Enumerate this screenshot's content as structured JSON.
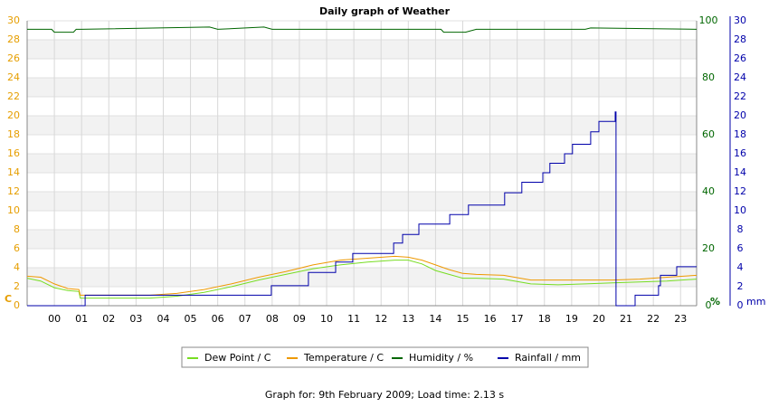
{
  "chart_data": {
    "type": "line",
    "title": "Daily graph of Weather",
    "footer": "Graph for: 9th February 2009; Load time: 2.13 s",
    "ylabel": "C",
    "y2label": "%",
    "y3label": "mm",
    "xlim": [
      -0.5,
      24.09
    ],
    "xticks": [
      {
        "value": 0.5,
        "label": "00"
      },
      {
        "value": 1.5,
        "label": "01"
      },
      {
        "value": 2.5,
        "label": "02"
      },
      {
        "value": 3.5,
        "label": "03"
      },
      {
        "value": 4.5,
        "label": "04"
      },
      {
        "value": 5.5,
        "label": "05"
      },
      {
        "value": 6.5,
        "label": "06"
      },
      {
        "value": 7.5,
        "label": "07"
      },
      {
        "value": 8.5,
        "label": "08"
      },
      {
        "value": 9.5,
        "label": "09"
      },
      {
        "value": 10.5,
        "label": "10"
      },
      {
        "value": 11.5,
        "label": "11"
      },
      {
        "value": 12.5,
        "label": "12"
      },
      {
        "value": 13.5,
        "label": "13"
      },
      {
        "value": 14.5,
        "label": "14"
      },
      {
        "value": 15.5,
        "label": "15"
      },
      {
        "value": 16.5,
        "label": "16"
      },
      {
        "value": 17.5,
        "label": "17"
      },
      {
        "value": 18.5,
        "label": "18"
      },
      {
        "value": 19.5,
        "label": "19"
      },
      {
        "value": 20.5,
        "label": "20"
      },
      {
        "value": 21.5,
        "label": "21"
      },
      {
        "value": 22.5,
        "label": "22"
      },
      {
        "value": 23.5,
        "label": "23"
      }
    ],
    "ylim": [
      0,
      30
    ],
    "yticks": [
      0,
      2,
      4,
      6,
      8,
      10,
      12,
      14,
      16,
      18,
      20,
      22,
      24,
      26,
      28,
      30
    ],
    "ycolor": "#e69e00",
    "y2lim": [
      0,
      100
    ],
    "y2ticks": [
      0,
      20,
      40,
      60,
      80,
      100
    ],
    "y2color": "#006600",
    "y3lim": [
      0,
      30
    ],
    "y3ticks": [
      0,
      2,
      4,
      6,
      8,
      10,
      12,
      14,
      16,
      18,
      20,
      22,
      24,
      26,
      28,
      30
    ],
    "y3color": "#0000aa",
    "grid": true,
    "series": [
      {
        "name": "Dew Point / C",
        "color": "#77dd22",
        "axis": "y",
        "x": [
          -0.5,
          0,
          0.5,
          1,
          1.4,
          1.45,
          2,
          3,
          4,
          5,
          6,
          7,
          8,
          9,
          10,
          11,
          12,
          13,
          13.5,
          14,
          14.5,
          15,
          15.5,
          16,
          17,
          18,
          19,
          20,
          21,
          22,
          23,
          24.09
        ],
        "values": [
          2.9,
          2.6,
          1.9,
          1.6,
          1.5,
          0.8,
          0.8,
          0.8,
          0.8,
          1.0,
          1.4,
          2.0,
          2.7,
          3.3,
          3.9,
          4.3,
          4.6,
          4.8,
          4.8,
          4.4,
          3.7,
          3.3,
          2.9,
          2.9,
          2.8,
          2.3,
          2.2,
          2.3,
          2.4,
          2.5,
          2.6,
          2.8
        ]
      },
      {
        "name": "Temperature / C",
        "color": "#ee9900",
        "axis": "y",
        "x": [
          -0.5,
          0,
          0.5,
          1,
          1.4,
          1.45,
          2,
          3,
          4,
          5,
          6,
          7,
          8,
          9,
          10,
          11,
          12,
          13,
          13.5,
          14,
          14.5,
          15,
          15.5,
          16,
          17,
          18,
          19,
          20,
          21,
          22,
          23,
          24.09
        ],
        "values": [
          3.1,
          3.0,
          2.3,
          1.8,
          1.7,
          1.1,
          1.1,
          1.1,
          1.1,
          1.3,
          1.7,
          2.3,
          3.0,
          3.6,
          4.3,
          4.8,
          5.0,
          5.2,
          5.1,
          4.8,
          4.3,
          3.8,
          3.4,
          3.3,
          3.2,
          2.7,
          2.7,
          2.7,
          2.7,
          2.8,
          3.0,
          3.2
        ]
      },
      {
        "name": "Humidity / %",
        "color": "#006600",
        "axis": "y2",
        "x": [
          -0.5,
          0.4,
          0.5,
          1.2,
          1.3,
          1.5,
          6.2,
          6.5,
          8.2,
          8.5,
          14.7,
          14.8,
          15.6,
          16,
          20.0,
          20.2,
          24.09
        ],
        "values": [
          97,
          97,
          96,
          96,
          97,
          97,
          97.8,
          97,
          97.8,
          97,
          97,
          96,
          96,
          97,
          97,
          97.5,
          97
        ]
      },
      {
        "name": "Rainfall / mm",
        "color": "#0000aa",
        "axis": "y3",
        "x": [
          -0.5,
          1.63,
          1.63,
          8.47,
          8.47,
          9.83,
          9.83,
          10.83,
          10.83,
          11.46,
          11.46,
          12.96,
          12.96,
          13.29,
          13.29,
          13.89,
          13.89,
          15.02,
          15.02,
          15.71,
          15.71,
          17.04,
          17.04,
          17.67,
          17.67,
          18.44,
          18.44,
          18.7,
          18.7,
          19.24,
          19.24,
          19.53,
          19.53,
          20.2,
          20.2,
          20.5,
          20.5,
          21.1,
          21.1,
          21.13,
          21.13,
          21.83,
          21.83,
          22.69,
          22.69,
          22.76,
          22.76,
          23.36,
          23.36,
          24.09
        ],
        "values": [
          0,
          0,
          1.1,
          1.1,
          2.1,
          2.1,
          3.5,
          3.5,
          4.6,
          4.6,
          5.5,
          5.5,
          6.6,
          6.6,
          7.5,
          7.5,
          8.6,
          8.6,
          9.6,
          9.6,
          10.6,
          10.6,
          11.9,
          11.9,
          13,
          13,
          14,
          14,
          15,
          15,
          16,
          16,
          17,
          17,
          18.3,
          18.3,
          19.4,
          19.4,
          20.4,
          20.4,
          0,
          0,
          1.1,
          1.1,
          2.1,
          2.1,
          3.2,
          3.2,
          4.1,
          4.1
        ]
      }
    ]
  }
}
